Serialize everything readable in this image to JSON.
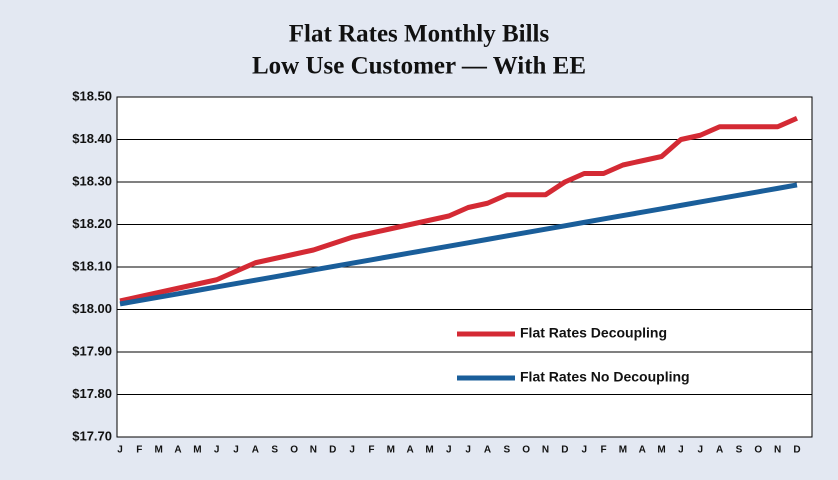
{
  "chart_data": {
    "type": "line",
    "title": [
      "Flat Rates Monthly Bills",
      "Low Use Customer — With EE"
    ],
    "categories": [
      "J",
      "F",
      "M",
      "A",
      "M",
      "J",
      "J",
      "A",
      "S",
      "O",
      "N",
      "D",
      "J",
      "F",
      "M",
      "A",
      "M",
      "J",
      "J",
      "A",
      "S",
      "O",
      "N",
      "D",
      "J",
      "F",
      "M",
      "A",
      "M",
      "J",
      "J",
      "A",
      "S",
      "O",
      "N",
      "D"
    ],
    "series": [
      {
        "name": "Flat Rates Decoupling",
        "color": "#d42a34",
        "values": [
          18.02,
          18.03,
          18.04,
          18.05,
          18.06,
          18.07,
          18.09,
          18.11,
          18.12,
          18.13,
          18.14,
          18.155,
          18.17,
          18.18,
          18.19,
          18.2,
          18.21,
          18.22,
          18.24,
          18.25,
          18.27,
          18.27,
          18.27,
          18.3,
          18.32,
          18.32,
          18.34,
          18.35,
          18.36,
          18.4,
          18.41,
          18.43,
          18.43,
          18.43,
          18.43,
          18.45
        ]
      },
      {
        "name": "Flat Rates No Decoupling",
        "color": "#1a5e9a",
        "values": [
          18.013,
          18.021,
          18.029,
          18.037,
          18.045,
          18.053,
          18.061,
          18.069,
          18.077,
          18.085,
          18.093,
          18.101,
          18.109,
          18.117,
          18.125,
          18.133,
          18.141,
          18.149,
          18.157,
          18.165,
          18.173,
          18.181,
          18.189,
          18.197,
          18.205,
          18.213,
          18.221,
          18.229,
          18.237,
          18.245,
          18.253,
          18.261,
          18.269,
          18.277,
          18.285,
          18.293
        ]
      }
    ],
    "ylim": [
      17.7,
      18.5
    ],
    "yticks": [
      {
        "value": 17.7,
        "label": "$17.70"
      },
      {
        "value": 17.8,
        "label": "$17.80"
      },
      {
        "value": 17.9,
        "label": "$17.90"
      },
      {
        "value": 18.0,
        "label": "$18.00"
      },
      {
        "value": 18.1,
        "label": "$18.10"
      },
      {
        "value": 18.2,
        "label": "$18.20"
      },
      {
        "value": 18.3,
        "label": "$18.30"
      },
      {
        "value": 18.4,
        "label": "$18.40"
      },
      {
        "value": 18.5,
        "label": "$18.50"
      }
    ],
    "grid": true
  }
}
